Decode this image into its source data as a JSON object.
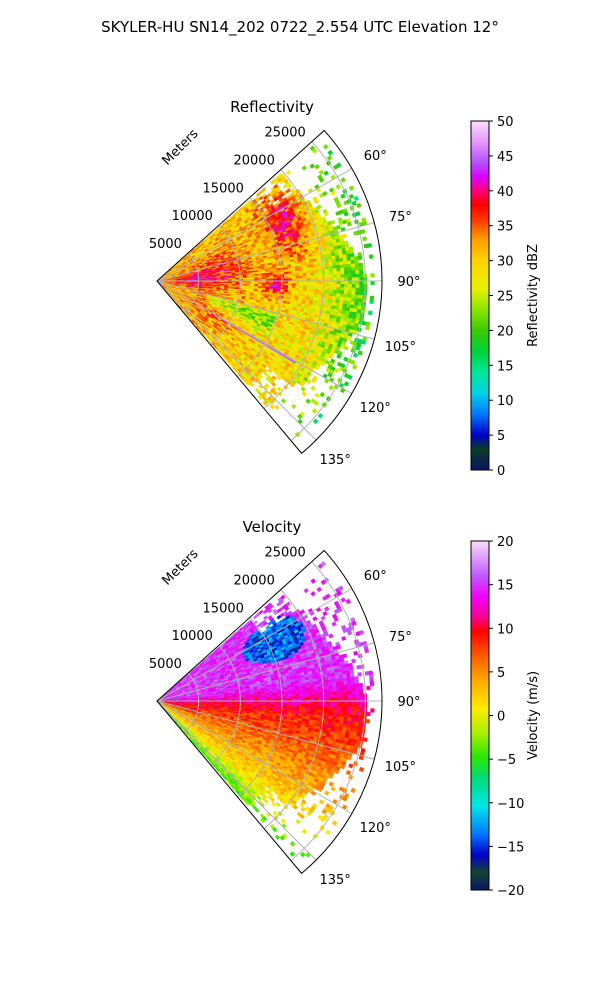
{
  "figure_title": "SKYLER-HU  SN14_202  0722_2.554 UTC Elevation 12°",
  "chart_data": [
    {
      "type": "heatmap",
      "projection": "polar-sector",
      "title": "Reflectivity",
      "radial_axis_label": "Meters",
      "radial_ticks": [
        5000,
        10000,
        15000,
        20000,
        25000
      ],
      "radial_range": [
        0,
        27000
      ],
      "azimuth_range_deg": [
        48,
        140
      ],
      "azimuth_ticks": [
        "60°",
        "75°",
        "90°",
        "105°",
        "120°",
        "135°"
      ],
      "colorbar": {
        "label": "Reflectivity dBZ",
        "range": [
          0,
          50
        ],
        "ticks": [
          "0",
          "5",
          "10",
          "15",
          "20",
          "25",
          "30",
          "35",
          "40",
          "45",
          "50"
        ],
        "colormap": "nws_reflectivity"
      },
      "field_summary": [
        {
          "region": "near radar",
          "typical_value": 35
        },
        {
          "region": "azimuth 60-80° mid range",
          "typical_value": 36
        },
        {
          "region": "azimuth 85-95° ~12000 m",
          "typical_value": 37
        },
        {
          "region": "outer edge",
          "typical_value": 18
        },
        {
          "region": "narrow line at azimuth ~120°",
          "typical_value": 45
        }
      ]
    },
    {
      "type": "heatmap",
      "projection": "polar-sector",
      "title": "Velocity",
      "radial_axis_label": "Meters",
      "radial_ticks": [
        5000,
        10000,
        15000,
        20000,
        25000
      ],
      "radial_range": [
        0,
        27000
      ],
      "azimuth_range_deg": [
        48,
        140
      ],
      "azimuth_ticks": [
        "60°",
        "75°",
        "90°",
        "105°",
        "120°",
        "135°"
      ],
      "colorbar": {
        "label": "Velocity (m/s)",
        "range": [
          -20,
          20
        ],
        "ticks": [
          "−20",
          "−15",
          "−10",
          "−5",
          "0",
          "5",
          "10",
          "15",
          "20"
        ],
        "colormap": "velocity"
      },
      "field_summary": [
        {
          "region": "azimuth 50-80°",
          "typical_value": 15
        },
        {
          "region": "azimuth 85-105°",
          "typical_value": 10
        },
        {
          "region": "azimuth 105-130°",
          "typical_value": 4
        },
        {
          "region": "azimuth 135-140°",
          "typical_value": -3
        },
        {
          "region": "azimuth ~62° at 13000-20000 m",
          "typical_value": -14
        }
      ]
    }
  ],
  "colors": {
    "grid": "#b0b0b0",
    "frame": "#000000"
  }
}
